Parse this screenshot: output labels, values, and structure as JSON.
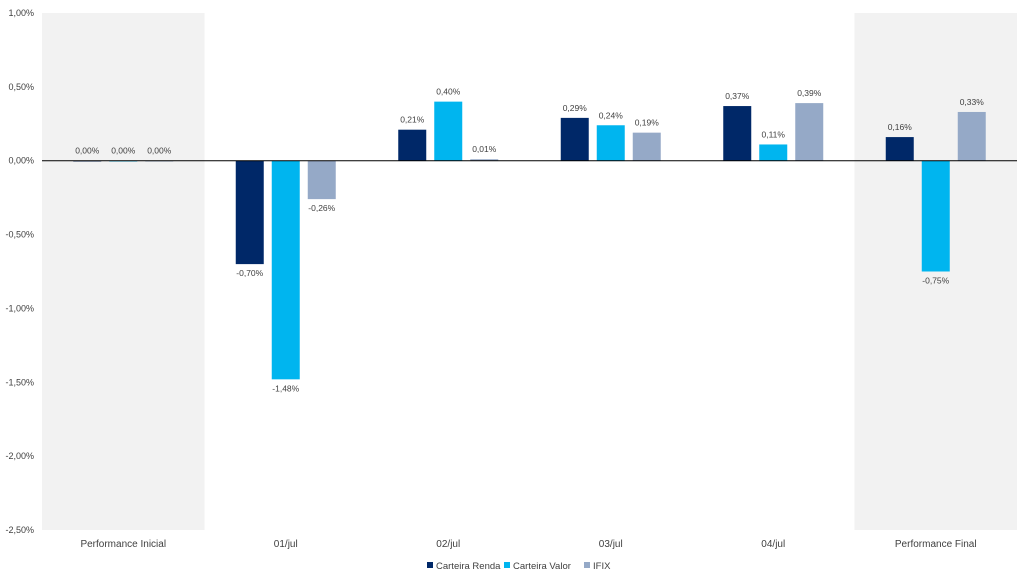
{
  "chart_data": {
    "type": "bar",
    "categories": [
      "Performance Inicial",
      "01/jul",
      "02/jul",
      "03/jul",
      "04/jul",
      "Performance Final"
    ],
    "highlighted_categories": [
      "Performance Inicial",
      "Performance Final"
    ],
    "series": [
      {
        "name": "Carteira Renda",
        "color": "#002868",
        "values": [
          0.0,
          -0.7,
          0.21,
          0.29,
          0.37,
          0.16
        ],
        "labels": [
          "0,00%",
          "-0,70%",
          "0,21%",
          "0,29%",
          "0,37%",
          "0,16%"
        ]
      },
      {
        "name": "Carteira Valor",
        "color": "#00b5ef",
        "values": [
          0.0,
          -1.48,
          0.4,
          0.24,
          0.11,
          -0.75
        ],
        "labels": [
          "0,00%",
          "-1,48%",
          "0,40%",
          "0,24%",
          "0,11%",
          "-0,75%"
        ]
      },
      {
        "name": "IFIX",
        "color": "#95a9c7",
        "values": [
          0.0,
          -0.26,
          0.01,
          0.19,
          0.39,
          0.33
        ],
        "labels": [
          "0,00%",
          "-0,26%",
          "0,01%",
          "0,19%",
          "0,39%",
          "0,33%"
        ]
      }
    ],
    "yticks": [
      1.0,
      0.5,
      0.0,
      -0.5,
      -1.0,
      -1.5,
      -2.0,
      -2.5
    ],
    "ytick_labels": [
      "1,00%",
      "0,50%",
      "0,00%",
      "-0,50%",
      "-1,00%",
      "-1,50%",
      "-2,00%",
      "-2,50%"
    ],
    "ylim": [
      -2.5,
      1.0
    ],
    "legend_position": "bottom-center",
    "grid": false,
    "highlight_color": "#f2f2f2",
    "zero_line_color": "#000000"
  }
}
